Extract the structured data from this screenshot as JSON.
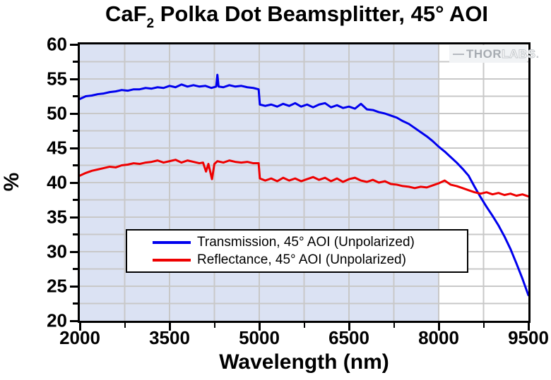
{
  "title": {
    "prefix": "CaF",
    "subscript": "2",
    "suffix": " Polka Dot Beamsplitter, 45° AOI"
  },
  "watermark": {
    "part1": "THOR",
    "part2": "LABS",
    "suffix": "."
  },
  "axes": {
    "x": {
      "label": "Wavelength (nm)",
      "min": 2000,
      "max": 9500,
      "major_ticks": [
        {
          "value": 2000,
          "label": "2000"
        },
        {
          "value": 3500,
          "label": "3500"
        },
        {
          "value": 5000,
          "label": "5000"
        },
        {
          "value": 6500,
          "label": "6500"
        },
        {
          "value": 8000,
          "label": "8000"
        },
        {
          "value": 9500,
          "label": "9500"
        }
      ],
      "minor_ticks": [
        2750,
        4250,
        5750,
        7250,
        8750
      ]
    },
    "y": {
      "label": "%",
      "min": 20,
      "max": 60,
      "major_ticks": [
        {
          "value": 60,
          "label": "60"
        },
        {
          "value": 55,
          "label": "55"
        },
        {
          "value": 50,
          "label": "50"
        },
        {
          "value": 45,
          "label": "45"
        },
        {
          "value": 40,
          "label": "40"
        },
        {
          "value": 35,
          "label": "35"
        },
        {
          "value": 30,
          "label": "30"
        },
        {
          "value": 25,
          "label": "25"
        },
        {
          "value": 20,
          "label": "20"
        }
      ],
      "minor_ticks": [
        57.5,
        52.5,
        47.5,
        42.5,
        37.5,
        32.5,
        27.5,
        22.5
      ]
    }
  },
  "shaded_region": {
    "x_start": 2000,
    "x_end": 8000,
    "color": "#dbe2f3"
  },
  "colors": {
    "transmission": "#0000ee",
    "reflectance": "#ee0000",
    "grid": "#c8c8c8",
    "axis": "#000000",
    "plot_background": "#ffffff",
    "shaded_background": "#dbe2f3",
    "watermark_gray": "#a7acb2"
  },
  "legend": {
    "items": [
      {
        "label": "Transmission, 45° AOI (Unpolarized)",
        "color": "#0000ee"
      },
      {
        "label": "Reflectance, 45° AOI (Unpolarized)",
        "color": "#ee0000"
      }
    ]
  },
  "chart_data": {
    "type": "line",
    "title": "CaF2 Polka Dot Beamsplitter, 45° AOI",
    "xlabel": "Wavelength (nm)",
    "ylabel": "%",
    "xlim": [
      2000,
      9500
    ],
    "ylim": [
      20,
      60
    ],
    "grid": true,
    "legend_position": "center-left-inside",
    "series": [
      {
        "name": "Transmission, 45° AOI (Unpolarized)",
        "color": "#0000ee",
        "points": [
          [
            2000,
            52.1
          ],
          [
            2100,
            52.5
          ],
          [
            2200,
            52.6
          ],
          [
            2300,
            52.8
          ],
          [
            2400,
            52.9
          ],
          [
            2500,
            53.1
          ],
          [
            2600,
            53.2
          ],
          [
            2700,
            53.4
          ],
          [
            2800,
            53.3
          ],
          [
            2900,
            53.5
          ],
          [
            3000,
            53.5
          ],
          [
            3100,
            53.7
          ],
          [
            3200,
            53.6
          ],
          [
            3300,
            53.8
          ],
          [
            3400,
            53.7
          ],
          [
            3500,
            54.0
          ],
          [
            3600,
            53.8
          ],
          [
            3700,
            54.2
          ],
          [
            3800,
            53.9
          ],
          [
            3900,
            54.1
          ],
          [
            4000,
            53.9
          ],
          [
            4100,
            54.0
          ],
          [
            4200,
            53.7
          ],
          [
            4280,
            53.9
          ],
          [
            4300,
            55.6
          ],
          [
            4320,
            53.9
          ],
          [
            4400,
            53.8
          ],
          [
            4500,
            54.1
          ],
          [
            4600,
            53.9
          ],
          [
            4700,
            54.0
          ],
          [
            4800,
            53.8
          ],
          [
            4900,
            53.7
          ],
          [
            4990,
            53.5
          ],
          [
            5010,
            51.3
          ],
          [
            5100,
            51.1
          ],
          [
            5200,
            51.3
          ],
          [
            5300,
            51.0
          ],
          [
            5400,
            51.4
          ],
          [
            5500,
            51.1
          ],
          [
            5600,
            51.5
          ],
          [
            5700,
            51.0
          ],
          [
            5800,
            51.3
          ],
          [
            5900,
            50.9
          ],
          [
            6000,
            51.3
          ],
          [
            6100,
            51.5
          ],
          [
            6200,
            50.9
          ],
          [
            6300,
            51.2
          ],
          [
            6400,
            50.8
          ],
          [
            6500,
            51.0
          ],
          [
            6600,
            50.7
          ],
          [
            6700,
            51.4
          ],
          [
            6800,
            50.6
          ],
          [
            6900,
            50.5
          ],
          [
            7000,
            50.2
          ],
          [
            7100,
            50.0
          ],
          [
            7200,
            49.7
          ],
          [
            7300,
            49.4
          ],
          [
            7400,
            48.9
          ],
          [
            7500,
            48.5
          ],
          [
            7600,
            47.9
          ],
          [
            7700,
            47.3
          ],
          [
            7800,
            46.7
          ],
          [
            7900,
            46.0
          ],
          [
            8000,
            45.2
          ],
          [
            8100,
            44.5
          ],
          [
            8200,
            43.7
          ],
          [
            8300,
            42.9
          ],
          [
            8400,
            42.0
          ],
          [
            8500,
            41.0
          ],
          [
            8600,
            39.4
          ],
          [
            8700,
            37.9
          ],
          [
            8800,
            36.5
          ],
          [
            8900,
            35.2
          ],
          [
            9000,
            33.8
          ],
          [
            9100,
            32.2
          ],
          [
            9200,
            30.4
          ],
          [
            9300,
            28.3
          ],
          [
            9400,
            26.1
          ],
          [
            9500,
            23.7
          ]
        ]
      },
      {
        "name": "Reflectance, 45° AOI (Unpolarized)",
        "color": "#ee0000",
        "points": [
          [
            2000,
            41.0
          ],
          [
            2100,
            41.4
          ],
          [
            2200,
            41.7
          ],
          [
            2300,
            41.9
          ],
          [
            2400,
            42.1
          ],
          [
            2500,
            42.3
          ],
          [
            2600,
            42.2
          ],
          [
            2700,
            42.5
          ],
          [
            2800,
            42.6
          ],
          [
            2900,
            42.8
          ],
          [
            3000,
            42.7
          ],
          [
            3100,
            42.9
          ],
          [
            3200,
            43.0
          ],
          [
            3300,
            43.2
          ],
          [
            3400,
            42.9
          ],
          [
            3500,
            43.1
          ],
          [
            3600,
            43.3
          ],
          [
            3700,
            42.9
          ],
          [
            3800,
            43.2
          ],
          [
            3900,
            43.0
          ],
          [
            4000,
            42.8
          ],
          [
            4060,
            42.9
          ],
          [
            4110,
            41.6
          ],
          [
            4150,
            42.7
          ],
          [
            4210,
            40.5
          ],
          [
            4250,
            42.7
          ],
          [
            4300,
            43.1
          ],
          [
            4400,
            42.9
          ],
          [
            4500,
            43.2
          ],
          [
            4600,
            43.0
          ],
          [
            4700,
            42.9
          ],
          [
            4800,
            43.0
          ],
          [
            4900,
            42.8
          ],
          [
            4990,
            42.8
          ],
          [
            5010,
            40.6
          ],
          [
            5100,
            40.3
          ],
          [
            5200,
            40.6
          ],
          [
            5300,
            40.2
          ],
          [
            5400,
            40.7
          ],
          [
            5500,
            40.3
          ],
          [
            5600,
            40.6
          ],
          [
            5700,
            40.2
          ],
          [
            5800,
            40.5
          ],
          [
            5900,
            40.8
          ],
          [
            6000,
            40.4
          ],
          [
            6100,
            40.7
          ],
          [
            6200,
            40.2
          ],
          [
            6300,
            40.6
          ],
          [
            6400,
            40.1
          ],
          [
            6500,
            40.5
          ],
          [
            6600,
            40.7
          ],
          [
            6700,
            40.3
          ],
          [
            6800,
            40.1
          ],
          [
            6900,
            40.4
          ],
          [
            7000,
            40.0
          ],
          [
            7100,
            40.2
          ],
          [
            7200,
            39.8
          ],
          [
            7300,
            39.7
          ],
          [
            7400,
            39.5
          ],
          [
            7500,
            39.4
          ],
          [
            7600,
            39.2
          ],
          [
            7700,
            39.4
          ],
          [
            7800,
            39.3
          ],
          [
            7900,
            39.6
          ],
          [
            8000,
            39.9
          ],
          [
            8100,
            40.3
          ],
          [
            8200,
            39.7
          ],
          [
            8300,
            39.5
          ],
          [
            8400,
            39.2
          ],
          [
            8500,
            38.9
          ],
          [
            8600,
            38.6
          ],
          [
            8700,
            38.4
          ],
          [
            8800,
            38.6
          ],
          [
            8900,
            38.3
          ],
          [
            9000,
            38.5
          ],
          [
            9100,
            38.2
          ],
          [
            9200,
            38.4
          ],
          [
            9300,
            38.1
          ],
          [
            9400,
            38.3
          ],
          [
            9500,
            38.0
          ]
        ]
      }
    ]
  }
}
